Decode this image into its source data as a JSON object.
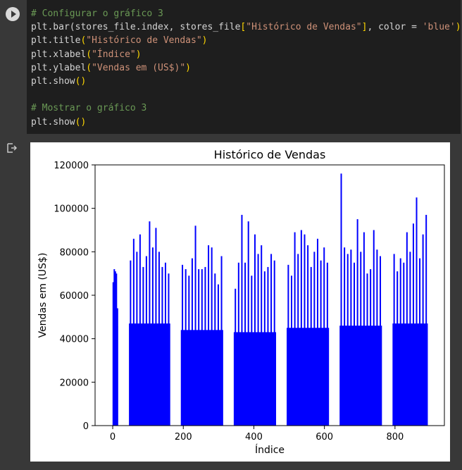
{
  "cell": {
    "run_icon": "play-icon",
    "code_lines": [
      [
        {
          "t": "# Configurar o gráfico 3",
          "c": "cm"
        }
      ],
      [
        {
          "t": "plt.bar(stores_file.index, stores_file"
        },
        {
          "t": "[",
          "c": "pu"
        },
        {
          "t": "\"Histórico de Vendas\"",
          "c": "st"
        },
        {
          "t": "]",
          "c": "pu"
        },
        {
          "t": ", color = "
        },
        {
          "t": "'blue'",
          "c": "st"
        },
        {
          "t": ")",
          "c": "pu"
        }
      ],
      [
        {
          "t": "plt.title"
        },
        {
          "t": "(",
          "c": "pu"
        },
        {
          "t": "\"Histórico de Vendas\"",
          "c": "st"
        },
        {
          "t": ")",
          "c": "pu"
        }
      ],
      [
        {
          "t": "plt.xlabel"
        },
        {
          "t": "(",
          "c": "pu"
        },
        {
          "t": "\"Índice\"",
          "c": "st"
        },
        {
          "t": ")",
          "c": "pu"
        }
      ],
      [
        {
          "t": "plt.ylabel"
        },
        {
          "t": "(",
          "c": "pu"
        },
        {
          "t": "\"Vendas em (US$)\"",
          "c": "st"
        },
        {
          "t": ")",
          "c": "pu"
        }
      ],
      [
        {
          "t": "plt.show"
        },
        {
          "t": "()",
          "c": "pu"
        }
      ],
      [
        {
          "t": ""
        }
      ],
      [
        {
          "t": "# Mostrar o gráfico 3",
          "c": "cm"
        }
      ],
      [
        {
          "t": "plt.show"
        },
        {
          "t": "()",
          "c": "pu"
        }
      ]
    ]
  },
  "output": {
    "icon": "output-redirect-icon"
  },
  "chart_data": {
    "type": "bar",
    "title": "Histórico de Vendas",
    "xlabel": "Índice",
    "ylabel": "Vendas em (US$)",
    "color": "#0000ff",
    "xlim": [
      -50,
      940
    ],
    "ylim": [
      0,
      120000
    ],
    "xticks": [
      0,
      200,
      400,
      600,
      800
    ],
    "yticks": [
      0,
      20000,
      40000,
      60000,
      80000,
      100000,
      120000
    ],
    "xtick_labels": [
      "0",
      "200",
      "400",
      "600",
      "800"
    ],
    "ytick_labels": [
      "0",
      "20000",
      "40000",
      "60000",
      "80000",
      "100000",
      "120000"
    ],
    "grid": false,
    "segments": [
      {
        "x_start": 0,
        "x_end": 15,
        "base_value": 46000,
        "peak_values": [
          66000,
          72000,
          71000,
          70000,
          54000
        ]
      },
      {
        "x_start": 46,
        "x_end": 163,
        "base_value": 47000,
        "peak_values": [
          76000,
          86000,
          80000,
          88000,
          73000,
          78000,
          94000,
          82000,
          91000,
          80000,
          73000,
          75000,
          70000
        ]
      },
      {
        "x_start": 193,
        "x_end": 313,
        "base_value": 44000,
        "peak_values": [
          74000,
          72000,
          69000,
          77000,
          92000,
          72000,
          72000,
          73000,
          83000,
          82000,
          70000,
          65000,
          78000
        ]
      },
      {
        "x_start": 343,
        "x_end": 463,
        "base_value": 43000,
        "peak_values": [
          63000,
          75000,
          97000,
          75000,
          94000,
          69000,
          88000,
          79000,
          83000,
          71000,
          73000,
          79000,
          76000
        ]
      },
      {
        "x_start": 493,
        "x_end": 613,
        "base_value": 45000,
        "peak_values": [
          74000,
          69000,
          89000,
          79000,
          90000,
          88000,
          83000,
          73000,
          80000,
          86000,
          76000,
          82000,
          75000
        ]
      },
      {
        "x_start": 643,
        "x_end": 763,
        "base_value": 46000,
        "peak_values": [
          116000,
          82000,
          79000,
          81000,
          75000,
          95000,
          80000,
          89000,
          70000,
          72000,
          90000,
          81000,
          78000
        ]
      },
      {
        "x_start": 793,
        "x_end": 893,
        "base_value": 47000,
        "peak_values": [
          79000,
          71000,
          77000,
          75000,
          89000,
          80000,
          93000,
          105000,
          77000,
          88000,
          97000
        ]
      }
    ]
  }
}
